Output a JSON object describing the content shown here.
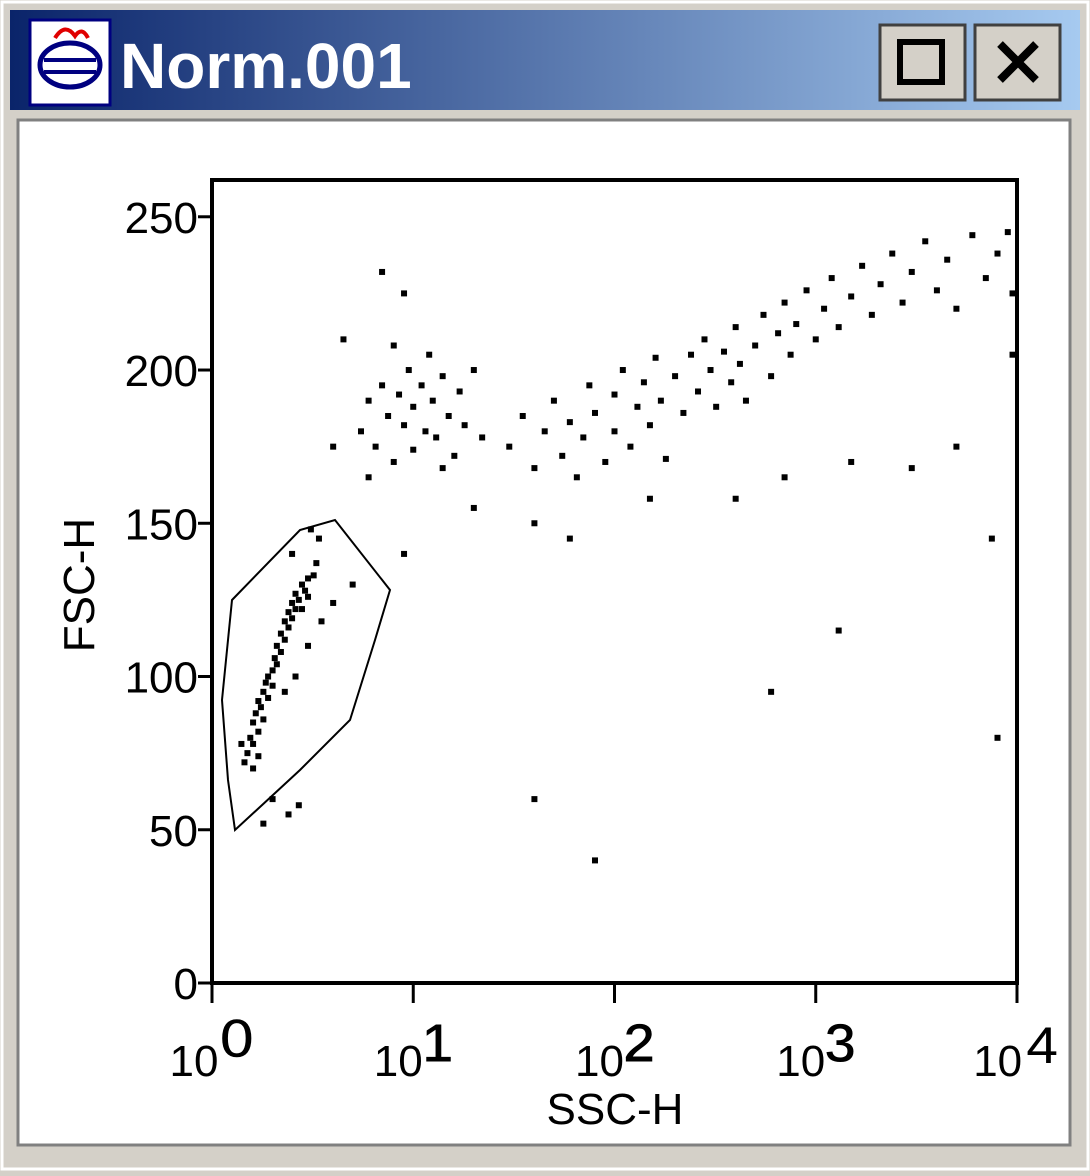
{
  "window": {
    "title": "Norm.001"
  },
  "chart_data": {
    "type": "scatter",
    "xlabel": "SSC-H",
    "ylabel": "FSC-H",
    "xscale": "log",
    "color": "#000000",
    "xlim": [
      1,
      10000
    ],
    "xticks": [
      {
        "value": 1,
        "label": "10⁰"
      },
      {
        "value": 10,
        "label": "10¹"
      },
      {
        "value": 100,
        "label": "10²"
      },
      {
        "value": 1000,
        "label": "10³"
      },
      {
        "value": 10000,
        "label": "10⁴"
      }
    ],
    "ylim": [
      0,
      262
    ],
    "yticks": [
      0,
      50,
      100,
      150,
      200,
      250
    ],
    "x": [
      1.5,
      1.55,
      1.6,
      1.6,
      1.65,
      1.7,
      1.7,
      1.75,
      1.8,
      1.8,
      1.85,
      1.9,
      1.9,
      2,
      2,
      2.05,
      2.1,
      2.1,
      2.2,
      2.2,
      2.3,
      2.3,
      2.4,
      2.4,
      2.5,
      2.5,
      2.6,
      2.6,
      2.7,
      2.8,
      2.8,
      2.9,
      3,
      3,
      3.2,
      3.3,
      1.45,
      1.4,
      1.6,
      1.7,
      2.3,
      2.6,
      3,
      3.5,
      4,
      2,
      2.4,
      1.8,
      2.7,
      3.4,
      3.1,
      2.5,
      5.5,
      6,
      6.5,
      7,
      7.5,
      8,
      8.5,
      9,
      9.5,
      10,
      10,
      11,
      11.5,
      12,
      12.5,
      13,
      14,
      15,
      16,
      17,
      18,
      20,
      6,
      8,
      14,
      4.5,
      4,
      22,
      9,
      7,
      30,
      35,
      40,
      45,
      50,
      55,
      60,
      65,
      70,
      75,
      80,
      90,
      100,
      100,
      110,
      120,
      130,
      140,
      150,
      160,
      170,
      180,
      200,
      220,
      240,
      260,
      280,
      300,
      320,
      350,
      380,
      400,
      420,
      450,
      500,
      550,
      600,
      650,
      700,
      750,
      800,
      900,
      1000,
      1100,
      1200,
      1300,
      1500,
      1700,
      1900,
      2100,
      2400,
      2700,
      3000,
      3500,
      4000,
      4500,
      5000,
      6000,
      7000,
      8000,
      9500,
      9500,
      9000,
      20,
      40,
      60,
      150,
      400,
      700,
      1500,
      3000,
      5000,
      40,
      80,
      600,
      1300,
      7500,
      8000,
      5,
      9
    ],
    "values": [
      75,
      80,
      78,
      85,
      88,
      82,
      92,
      90,
      95,
      86,
      98,
      100,
      93,
      102,
      97,
      106,
      104,
      110,
      108,
      114,
      112,
      118,
      116,
      121,
      119,
      124,
      122,
      127,
      125,
      130,
      122,
      128,
      132,
      126,
      133,
      137,
      72,
      78,
      70,
      74,
      95,
      100,
      110,
      118,
      124,
      60,
      55,
      52,
      58,
      145,
      148,
      140,
      180,
      190,
      175,
      195,
      185,
      170,
      192,
      182,
      200,
      188,
      174,
      195,
      180,
      205,
      190,
      178,
      198,
      185,
      172,
      193,
      182,
      200,
      165,
      208,
      168,
      210,
      175,
      178,
      225,
      232,
      175,
      185,
      168,
      180,
      190,
      172,
      183,
      165,
      178,
      195,
      186,
      170,
      180,
      192,
      200,
      175,
      188,
      196,
      182,
      204,
      190,
      171,
      198,
      186,
      205,
      193,
      210,
      200,
      188,
      206,
      196,
      214,
      202,
      190,
      208,
      218,
      198,
      212,
      222,
      205,
      215,
      226,
      210,
      220,
      230,
      214,
      224,
      234,
      218,
      228,
      238,
      222,
      232,
      242,
      226,
      236,
      220,
      244,
      230,
      238,
      225,
      205,
      245,
      155,
      150,
      145,
      158,
      158,
      165,
      170,
      168,
      175,
      60,
      40,
      95,
      115,
      145,
      80,
      130,
      140
    ]
  }
}
